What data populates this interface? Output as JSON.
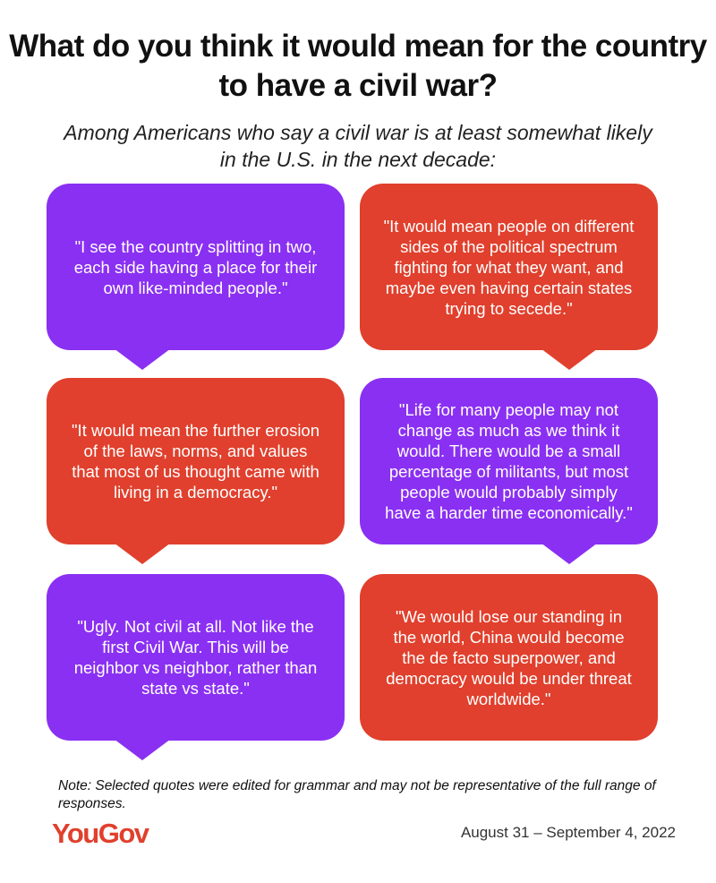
{
  "title": "What do you think it would mean for the country to have a civil war?",
  "subtitle": "Among Americans who say a civil war is at least somewhat likely in the U.S. in the next decade:",
  "quotes": [
    {
      "text": "\"I see the country splitting in two, each side having a place for their own like-minded people.\"",
      "color": "#8a30f2"
    },
    {
      "text": "\"It would mean people on different sides of the political spectrum fighting for what they want, and maybe even having certain states trying to secede.\"",
      "color": "#e0402d"
    },
    {
      "text": "\"It would mean the further erosion of the laws, norms, and values that most of us thought came with living in a democracy.\"",
      "color": "#e0402d"
    },
    {
      "text": "\"Life for many people may not change as much as we think it would. There would be a small percentage of militants, but most people would probably simply have a harder time economically.\"",
      "color": "#8a30f2"
    },
    {
      "text": "\"Ugly. Not civil at all. Not like the first Civil War. This will be neighbor vs neighbor, rather than state vs state.\"",
      "color": "#8a30f2"
    },
    {
      "text": "\"We would lose our standing in the world, China would become the de facto superpower, and democracy would be under threat worldwide.\"",
      "color": "#e0402d"
    }
  ],
  "note": "Note: Selected quotes were edited for grammar and may not be representative of the full range of responses.",
  "logo": "YouGov",
  "date": "August 31 – September 4, 2022"
}
